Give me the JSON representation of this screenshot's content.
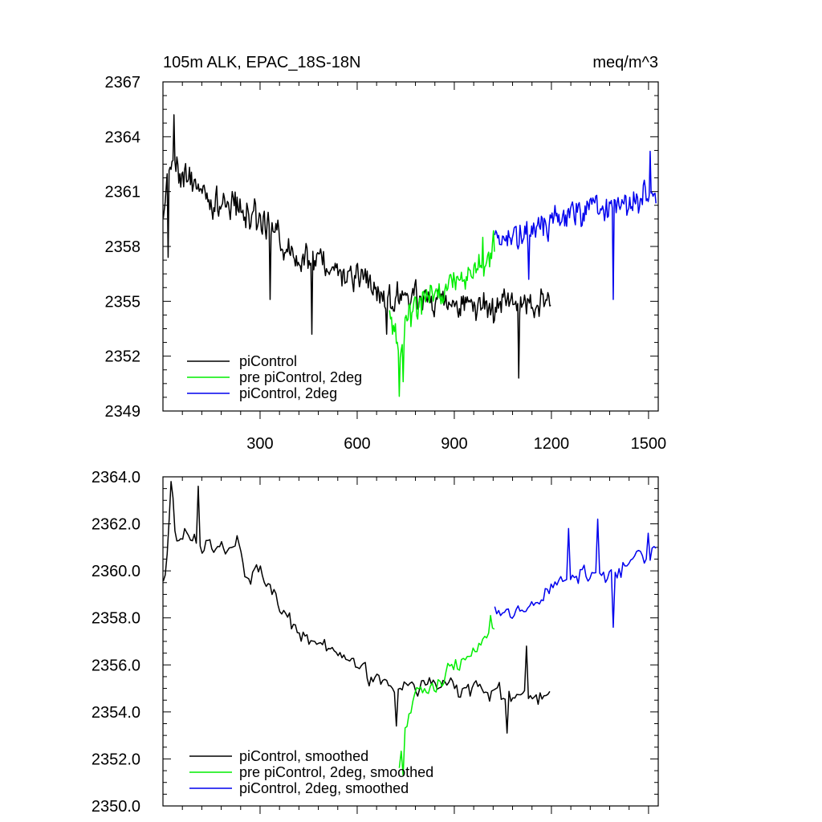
{
  "chart_data": [
    {
      "type": "line",
      "title_left": "105m ALK, EPAC_18S-18N",
      "title_right": "meq/m^3",
      "xlim": [
        0,
        1530
      ],
      "ylim": [
        2349,
        2367
      ],
      "x_ticks": [
        300,
        600,
        900,
        1200,
        1500
      ],
      "x_tick_labels": [
        "300",
        "600",
        "900",
        "1200",
        "1500"
      ],
      "y_ticks": [
        2349,
        2352,
        2355,
        2358,
        2361,
        2364,
        2367
      ],
      "y_tick_labels": [
        "2349",
        "2352",
        "2355",
        "2358",
        "2361",
        "2364",
        "2367"
      ],
      "legend": [
        "piControl",
        "pre piControl, 2deg",
        "piControl, 2deg"
      ],
      "series": [
        {
          "name": "piControl",
          "color": "#000000",
          "x_start": 1,
          "x_end": 1200,
          "step": 3,
          "anchors": [
            [
              0,
              2359.5
            ],
            [
              20,
              2362.5
            ],
            [
              60,
              2362
            ],
            [
              150,
              2360.5
            ],
            [
              250,
              2360
            ],
            [
              300,
              2359.5
            ],
            [
              400,
              2357.5
            ],
            [
              500,
              2357
            ],
            [
              600,
              2356.5
            ],
            [
              700,
              2355.2
            ],
            [
              800,
              2355.2
            ],
            [
              900,
              2355
            ],
            [
              1000,
              2354.8
            ],
            [
              1100,
              2354.7
            ],
            [
              1200,
              2354.8
            ]
          ],
          "noise": 1.2,
          "spikes": [
            [
              35,
              2365.2
            ],
            [
              15,
              2357.4
            ],
            [
              460,
              2353.2
            ],
            [
              330,
              2355.1
            ],
            [
              1100,
              2350.8
            ],
            [
              690,
              2353.2
            ]
          ]
        },
        {
          "name": "pre piControl, 2deg",
          "color": "#00ee00",
          "x_start": 700,
          "x_end": 1025,
          "step": 3,
          "anchors": [
            [
              700,
              2354.5
            ],
            [
              730,
              2352.5
            ],
            [
              760,
              2354.2
            ],
            [
              800,
              2355
            ],
            [
              850,
              2355.5
            ],
            [
              900,
              2356
            ],
            [
              950,
              2356.5
            ],
            [
              1000,
              2357.3
            ],
            [
              1025,
              2358
            ]
          ],
          "noise": 1.1,
          "spikes": [
            [
              730,
              2349.8
            ],
            [
              742,
              2350.6
            ],
            [
              988,
              2358.5
            ]
          ]
        },
        {
          "name": "piControl, 2deg",
          "color": "#0000ee",
          "x_start": 1025,
          "x_end": 1525,
          "step": 3,
          "anchors": [
            [
              1025,
              2358.3
            ],
            [
              1100,
              2358.5
            ],
            [
              1150,
              2358.7
            ],
            [
              1200,
              2359.5
            ],
            [
              1300,
              2360
            ],
            [
              1400,
              2360.2
            ],
            [
              1450,
              2360.4
            ],
            [
              1500,
              2361
            ],
            [
              1525,
              2361
            ]
          ],
          "noise": 1.1,
          "spikes": [
            [
              1390,
              2355.1
            ],
            [
              1505,
              2363.2
            ],
            [
              1130,
              2356.2
            ]
          ]
        }
      ]
    },
    {
      "type": "line",
      "xlim": [
        0,
        1530
      ],
      "ylim": [
        2350,
        2364
      ],
      "x_ticks": [
        300,
        600,
        900,
        1200,
        1500
      ],
      "y_ticks": [
        2350,
        2352,
        2354,
        2356,
        2358,
        2360,
        2362,
        2364
      ],
      "y_tick_labels": [
        "2350.0",
        "2352.0",
        "2354.0",
        "2356.0",
        "2358.0",
        "2360.0",
        "2362.0",
        "2364.0"
      ],
      "legend": [
        "piControl, smoothed",
        "pre piControl, 2deg, smoothed",
        "piControl, 2deg, smoothed"
      ],
      "series": [
        {
          "name": "piControl, smoothed",
          "color": "#000000",
          "x_start": 1,
          "x_end": 1200,
          "step": 6,
          "anchors": [
            [
              0,
              2359.4
            ],
            [
              10,
              2360
            ],
            [
              25,
              2363.9
            ],
            [
              40,
              2361.5
            ],
            [
              80,
              2361.5
            ],
            [
              150,
              2361
            ],
            [
              200,
              2361
            ],
            [
              230,
              2361.5
            ],
            [
              250,
              2360
            ],
            [
              300,
              2359.8
            ],
            [
              400,
              2357.5
            ],
            [
              500,
              2356.7
            ],
            [
              600,
              2356
            ],
            [
              700,
              2355.2
            ],
            [
              800,
              2355.2
            ],
            [
              900,
              2355
            ],
            [
              1000,
              2354.8
            ],
            [
              1100,
              2354.7
            ],
            [
              1200,
              2354.8
            ]
          ],
          "noise": 0.55,
          "spikes": [
            [
              25,
              2364
            ],
            [
              110,
              2363.6
            ],
            [
              720,
              2353.4
            ],
            [
              1060,
              2353.1
            ],
            [
              1120,
              2356.8
            ]
          ]
        },
        {
          "name": "pre piControl, 2deg, smoothed",
          "color": "#00ee00",
          "x_start": 730,
          "x_end": 1025,
          "step": 6,
          "anchors": [
            [
              730,
              2351.5
            ],
            [
              745,
              2352.8
            ],
            [
              770,
              2354.5
            ],
            [
              800,
              2355
            ],
            [
              850,
              2355.3
            ],
            [
              900,
              2355.8
            ],
            [
              950,
              2356.5
            ],
            [
              1000,
              2357.2
            ],
            [
              1025,
              2357.5
            ]
          ],
          "noise": 0.5,
          "spikes": [
            [
              740,
              2351.3
            ],
            [
              1010,
              2358.1
            ]
          ]
        },
        {
          "name": "piControl, 2deg, smoothed",
          "color": "#0000ee",
          "x_start": 1025,
          "x_end": 1525,
          "step": 6,
          "anchors": [
            [
              1025,
              2358.2
            ],
            [
              1100,
              2358.3
            ],
            [
              1150,
              2358.5
            ],
            [
              1200,
              2359.5
            ],
            [
              1300,
              2359.8
            ],
            [
              1400,
              2359.9
            ],
            [
              1450,
              2360.5
            ],
            [
              1500,
              2360.5
            ],
            [
              1525,
              2361
            ]
          ],
          "noise": 0.55,
          "spikes": [
            [
              1255,
              2361.8
            ],
            [
              1340,
              2362.2
            ],
            [
              1390,
              2357.6
            ],
            [
              1500,
              2361.6
            ]
          ]
        }
      ]
    }
  ]
}
